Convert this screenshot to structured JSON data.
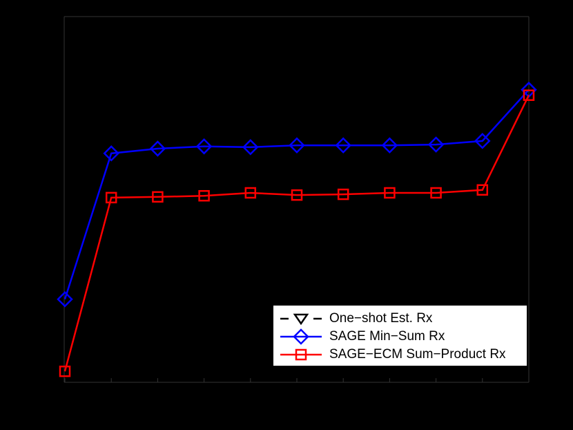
{
  "chart_data": {
    "type": "line",
    "title": "",
    "xlabel": "",
    "ylabel": "",
    "background": "#000000",
    "axis_color": "#333333",
    "grid": false,
    "x": [
      1,
      2,
      3,
      4,
      5,
      6,
      7,
      8,
      9,
      10,
      11
    ],
    "x_note": "Tick labels not visible (black on black); 11 equally spaced points",
    "y_note": "Values normalized to axis height (0=bottom, 1=top); tick labels not visible",
    "ylim": [
      0,
      1
    ],
    "series": [
      {
        "name": "One−shot Est. Rx",
        "color": "#000000",
        "line_style": "dashed",
        "marker": "triangle-down",
        "values": []
      },
      {
        "name": "SAGE Min−Sum Rx",
        "color": "#0000ff",
        "line_style": "solid",
        "marker": "diamond",
        "values": [
          0.227,
          0.626,
          0.639,
          0.645,
          0.643,
          0.648,
          0.648,
          0.648,
          0.65,
          0.66,
          0.8
        ]
      },
      {
        "name": "SAGE−ECM Sum−Product Rx",
        "color": "#ff0000",
        "line_style": "solid",
        "marker": "square",
        "values": [
          0.03,
          0.505,
          0.507,
          0.51,
          0.518,
          0.512,
          0.514,
          0.518,
          0.518,
          0.526,
          0.785
        ]
      }
    ],
    "legend": {
      "position": "lower right",
      "entries": [
        "One−shot Est. Rx",
        "SAGE Min−Sum Rx",
        "SAGE−ECM Sum−Product Rx"
      ]
    }
  },
  "legend": {
    "items": [
      {
        "label": "One−shot Est. Rx"
      },
      {
        "label": "SAGE Min−Sum Rx"
      },
      {
        "label": "SAGE−ECM Sum−Product Rx"
      }
    ]
  }
}
